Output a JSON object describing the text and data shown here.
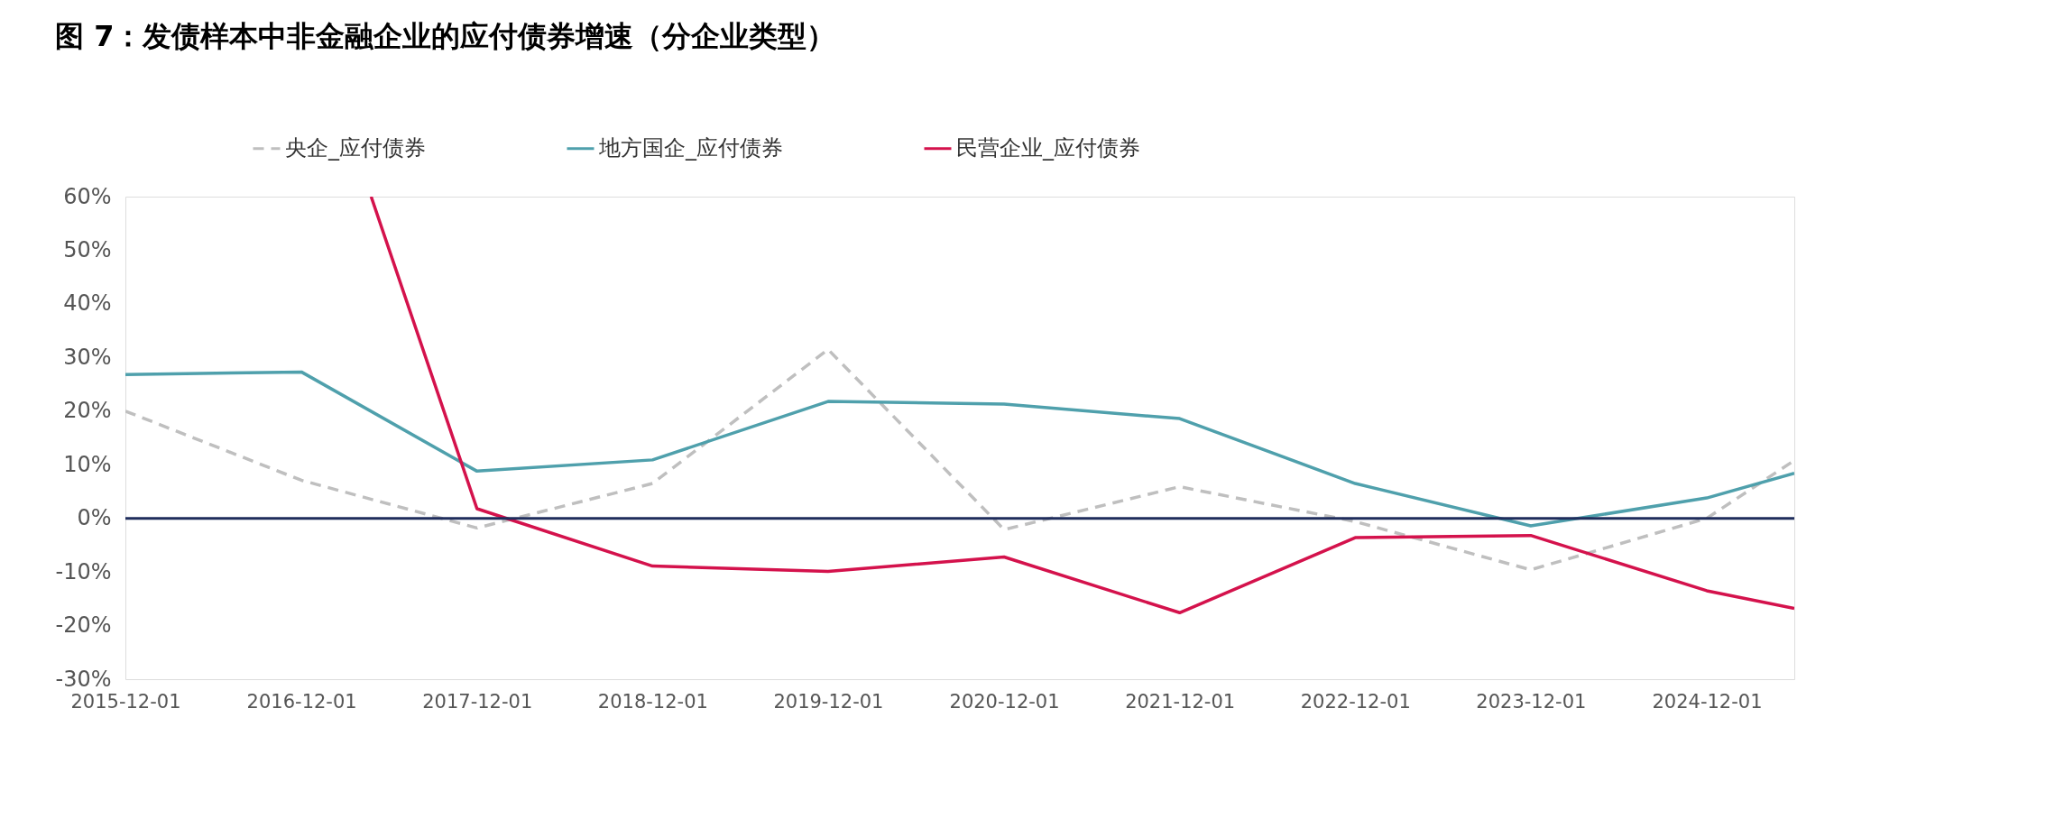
{
  "chart_data": {
    "type": "line",
    "title": "图 7：发债样本中非金融企业的应付债券增速（分企业类型）",
    "x": [
      "2015-12-01",
      "2016-12-01",
      "2017-12-01",
      "2018-12-01",
      "2019-12-01",
      "2020-12-01",
      "2021-12-01",
      "2022-12-01",
      "2023-12-01",
      "2024-12-01",
      "2025-06-01"
    ],
    "series": [
      {
        "name": "央企_应付债券",
        "color": "#bfbfbf",
        "line_style": "dashed",
        "values": [
          20.0,
          7.1,
          -1.8,
          6.5,
          31.5,
          -2.1,
          5.9,
          -0.6,
          -9.6,
          0.0,
          10.8
        ]
      },
      {
        "name": "地方国企_应付债券",
        "color": "#4fa0ac",
        "line_style": "solid",
        "values": [
          26.8,
          27.3,
          8.8,
          10.9,
          21.8,
          21.3,
          18.6,
          6.5,
          -1.4,
          3.8,
          8.4
        ]
      },
      {
        "name": "民营企业_应付债券",
        "color": "#d4124c",
        "line_style": "solid",
        "x": [
          "2017-04-25",
          "2017-12-01",
          "2018-12-01",
          "2019-12-01",
          "2020-12-01",
          "2021-12-01",
          "2022-12-01",
          "2023-12-01",
          "2024-12-01",
          "2025-06-01"
        ],
        "values": [
          60,
          1.8,
          -8.9,
          -9.9,
          -7.2,
          -17.6,
          -3.6,
          -3.2,
          -13.5,
          -16.8
        ]
      }
    ],
    "xlim": [
      "2015-12-01",
      "2025-06-01"
    ],
    "xticks": [
      "2015-12-01",
      "2016-12-01",
      "2017-12-01",
      "2018-12-01",
      "2019-12-01",
      "2020-12-01",
      "2021-12-01",
      "2022-12-01",
      "2023-12-01",
      "2024-12-01"
    ],
    "ylim": [
      -30,
      60
    ],
    "yticks": [
      {
        "value": -30,
        "label": "-30%"
      },
      {
        "value": -20,
        "label": "-20%"
      },
      {
        "value": -10,
        "label": "-10%"
      },
      {
        "value": 0,
        "label": "0%"
      },
      {
        "value": 10,
        "label": "10%"
      },
      {
        "value": 20,
        "label": "20%"
      },
      {
        "value": 30,
        "label": "30%"
      },
      {
        "value": 40,
        "label": "40%"
      },
      {
        "value": 50,
        "label": "50%"
      },
      {
        "value": 60,
        "label": "60%"
      }
    ],
    "ref_lines": [
      {
        "axis": "y",
        "value": 0,
        "color": "#1f2d5c"
      }
    ],
    "grid": false,
    "legend": "top",
    "marker": "none"
  }
}
